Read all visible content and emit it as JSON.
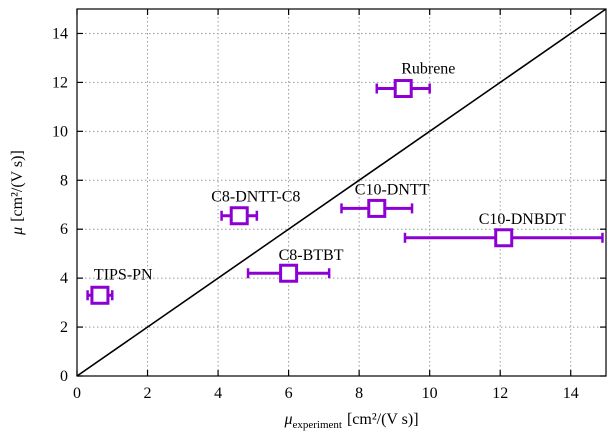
{
  "chart_data": {
    "type": "scatter",
    "xlabel": {
      "symbol": "μ",
      "subscript": "experiment",
      "unit": "[cm²/(V s)]"
    },
    "ylabel": {
      "symbol": "μ",
      "unit": "[cm²/(V s)]"
    },
    "xlim": [
      0,
      15
    ],
    "ylim": [
      0,
      15
    ],
    "xticks": [
      0,
      2,
      4,
      6,
      8,
      10,
      12,
      14
    ],
    "yticks": [
      0,
      2,
      4,
      6,
      8,
      10,
      12,
      14
    ],
    "grid": true,
    "reference_line": "y = x",
    "marker_color": "#8c00d4",
    "points": [
      {
        "label": "TIPS-PN",
        "x": 0.65,
        "y": 3.3,
        "xerr": [
          0.35,
          0.35
        ]
      },
      {
        "label": "C8-DNTT-C8",
        "x": 4.6,
        "y": 6.55,
        "xerr": [
          0.5,
          0.5
        ]
      },
      {
        "label": "C8-BTBT",
        "x": 6.0,
        "y": 4.2,
        "xerr": [
          1.15,
          1.15
        ]
      },
      {
        "label": "C10-DNTT",
        "x": 8.5,
        "y": 6.85,
        "xerr": [
          1.0,
          1.0
        ]
      },
      {
        "label": "Rubrene",
        "x": 9.25,
        "y": 11.75,
        "xerr": [
          0.75,
          0.75
        ]
      },
      {
        "label": "C10-DNBDT",
        "x": 12.1,
        "y": 5.65,
        "xerr": [
          2.8,
          2.8
        ]
      }
    ]
  }
}
